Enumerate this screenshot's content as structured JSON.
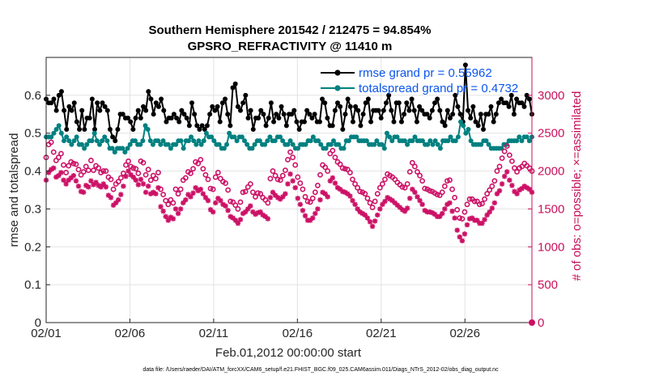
{
  "chart_data": {
    "type": "line",
    "title": "Southern Hemisphere 201542 / 212475 = 94.854%",
    "subtitle": "GPSRO_REFRACTIVITY @ 11410 m",
    "xlabel": "Feb.01,2012 00:00:00 start",
    "ylabel_left": "rmse and totalspread",
    "ylabel_right": "# of obs: o=possible; ×=assimilated",
    "footnote": "data file: /Users/raeder/DAI/ATM_forcXX/CAM6_setup/f.e21.FHIST_BGC.f09_025.CAM6assim.011/Diags_NTrS_2012-02/obs_diag_output.nc",
    "x_ticks": [
      "02/01",
      "02/06",
      "02/11",
      "02/16",
      "02/21",
      "02/26"
    ],
    "xlim_days": [
      1,
      30
    ],
    "y_left_ticks": [
      "0",
      "0.1",
      "0.2",
      "0.3",
      "0.4",
      "0.5",
      "0.6"
    ],
    "ylim_left": [
      0,
      0.7
    ],
    "y_right_ticks": [
      "0",
      "500",
      "1000",
      "1500",
      "2000",
      "2500",
      "3000"
    ],
    "ylim_right": [
      0,
      3500
    ],
    "grid": true,
    "legend_position": "top-right",
    "colors": {
      "rmse": "#000000",
      "spread": "#008080",
      "obs": "#cc1166"
    },
    "series": [
      {
        "name": "rmse grand pr = 0.55962",
        "axis": "left",
        "marker": "filled-dot",
        "color": "#000000",
        "values": [
          0.59,
          0.58,
          0.58,
          0.59,
          0.56,
          0.6,
          0.61,
          0.56,
          0.51,
          0.57,
          0.56,
          0.58,
          0.53,
          0.51,
          0.56,
          0.51,
          0.54,
          0.54,
          0.59,
          0.51,
          0.58,
          0.56,
          0.58,
          0.57,
          0.56,
          0.51,
          0.49,
          0.48,
          0.51,
          0.55,
          0.55,
          0.54,
          0.54,
          0.53,
          0.51,
          0.54,
          0.56,
          0.54,
          0.57,
          0.56,
          0.61,
          0.59,
          0.55,
          0.58,
          0.57,
          0.59,
          0.56,
          0.53,
          0.54,
          0.54,
          0.55,
          0.54,
          0.53,
          0.56,
          0.55,
          0.54,
          0.52,
          0.58,
          0.55,
          0.52,
          0.51,
          0.52,
          0.51,
          0.52,
          0.55,
          0.57,
          0.56,
          0.57,
          0.53,
          0.58,
          0.59,
          0.55,
          0.52,
          0.62,
          0.63,
          0.57,
          0.56,
          0.58,
          0.6,
          0.54,
          0.56,
          0.51,
          0.54,
          0.54,
          0.56,
          0.55,
          0.52,
          0.54,
          0.58,
          0.53,
          0.55,
          0.54,
          0.57,
          0.55,
          0.52,
          0.55,
          0.55,
          0.56,
          0.53,
          0.51,
          0.53,
          0.53,
          0.56,
          0.55,
          0.54,
          0.55,
          0.53,
          0.53,
          0.59,
          0.58,
          0.54,
          0.52,
          0.52,
          0.56,
          0.58,
          0.57,
          0.51,
          0.55,
          0.59,
          0.57,
          0.53,
          0.57,
          0.56,
          0.52,
          0.55,
          0.58,
          0.59,
          0.53,
          0.56,
          0.56,
          0.56,
          0.54,
          0.56,
          0.58,
          0.6,
          0.56,
          0.53,
          0.58,
          0.58,
          0.53,
          0.55,
          0.58,
          0.56,
          0.59,
          0.56,
          0.53,
          0.57,
          0.56,
          0.55,
          0.55,
          0.54,
          0.56,
          0.58,
          0.59,
          0.56,
          0.53,
          0.52,
          0.56,
          0.54,
          0.55,
          0.6,
          0.57,
          0.55,
          0.53,
          0.68,
          0.56,
          0.54,
          0.57,
          0.53,
          0.52,
          0.55,
          0.51,
          0.55,
          0.55,
          0.57,
          0.53,
          0.55,
          0.58,
          0.59,
          0.58,
          0.58,
          0.57,
          0.6,
          0.55,
          0.59,
          0.58,
          0.58,
          0.57,
          0.6,
          0.59,
          0.55
        ]
      },
      {
        "name": "totalspread grand pr = 0.4732",
        "axis": "left",
        "marker": "filled-dot",
        "color": "#008080",
        "values": [
          0.49,
          0.49,
          0.49,
          0.5,
          0.51,
          0.52,
          0.5,
          0.48,
          0.49,
          0.48,
          0.47,
          0.48,
          0.49,
          0.47,
          0.47,
          0.46,
          0.47,
          0.48,
          0.48,
          0.5,
          0.48,
          0.47,
          0.48,
          0.49,
          0.48,
          0.46,
          0.46,
          0.45,
          0.46,
          0.46,
          0.46,
          0.45,
          0.46,
          0.47,
          0.48,
          0.48,
          0.47,
          0.47,
          0.48,
          0.52,
          0.51,
          0.48,
          0.47,
          0.48,
          0.48,
          0.47,
          0.48,
          0.47,
          0.47,
          0.46,
          0.47,
          0.47,
          0.48,
          0.48,
          0.46,
          0.48,
          0.48,
          0.49,
          0.48,
          0.47,
          0.48,
          0.47,
          0.48,
          0.5,
          0.49,
          0.49,
          0.48,
          0.47,
          0.47,
          0.46,
          0.46,
          0.47,
          0.5,
          0.49,
          0.49,
          0.48,
          0.49,
          0.49,
          0.48,
          0.47,
          0.46,
          0.46,
          0.47,
          0.48,
          0.48,
          0.47,
          0.47,
          0.48,
          0.49,
          0.48,
          0.48,
          0.49,
          0.49,
          0.48,
          0.47,
          0.47,
          0.48,
          0.47,
          0.46,
          0.46,
          0.47,
          0.47,
          0.47,
          0.48,
          0.48,
          0.49,
          0.48,
          0.48,
          0.47,
          0.46,
          0.46,
          0.47,
          0.47,
          0.48,
          0.47,
          0.47,
          0.46,
          0.46,
          0.48,
          0.48,
          0.49,
          0.49,
          0.49,
          0.48,
          0.48,
          0.48,
          0.48,
          0.47,
          0.47,
          0.47,
          0.48,
          0.47,
          0.47,
          0.46,
          0.5,
          0.49,
          0.48,
          0.49,
          0.49,
          0.48,
          0.48,
          0.48,
          0.47,
          0.48,
          0.48,
          0.49,
          0.48,
          0.48,
          0.48,
          0.47,
          0.47,
          0.48,
          0.47,
          0.48,
          0.47,
          0.46,
          0.48,
          0.48,
          0.48,
          0.49,
          0.48,
          0.48,
          0.49,
          0.53,
          0.52,
          0.5,
          0.51,
          0.48,
          0.47,
          0.47,
          0.47,
          0.47,
          0.48,
          0.48,
          0.47,
          0.46,
          0.46,
          0.46,
          0.46,
          0.46,
          0.47,
          0.47,
          0.48,
          0.48,
          0.48,
          0.48,
          0.49,
          0.48,
          0.49,
          0.49,
          0.48,
          0.49
        ]
      },
      {
        "name": "possible obs",
        "axis": "right",
        "marker": "open-circle",
        "color": "#cc1166",
        "values": [
          2180,
          2350,
          2380,
          2250,
          2140,
          2180,
          2230,
          2080,
          1980,
          2070,
          2120,
          2100,
          2090,
          2020,
          1950,
          1990,
          2060,
          2010,
          2140,
          2010,
          2070,
          2040,
          1980,
          2000,
          2000,
          1920,
          1890,
          1760,
          1830,
          1860,
          1910,
          1970,
          2080,
          2130,
          2060,
          2040,
          2030,
          1970,
          2130,
          2110,
          1950,
          2020,
          1880,
          1940,
          1900,
          1980,
          1760,
          1690,
          1610,
          1560,
          1620,
          1580,
          1760,
          1700,
          1760,
          1880,
          1910,
          1990,
          1970,
          2030,
          2120,
          2100,
          2150,
          2030,
          1950,
          1890,
          1770,
          1760,
          1920,
          1980,
          1900,
          1860,
          1840,
          1750,
          1600,
          1590,
          1550,
          1500,
          1590,
          1720,
          1730,
          1790,
          1830,
          1720,
          1660,
          1710,
          1700,
          1650,
          1620,
          1580,
          1900,
          2000,
          1940,
          1890,
          1880,
          1940,
          2010,
          2150,
          2250,
          2180,
          2080,
          1920,
          1840,
          1760,
          1660,
          1600,
          1590,
          1640,
          1720,
          1810,
          1950,
          2080,
          2050,
          2000,
          2230,
          2270,
          2180,
          2120,
          2090,
          2040,
          2030,
          2020,
          1980,
          1890,
          1830,
          1780,
          1730,
          1720,
          1700,
          1640,
          1580,
          1520,
          1600,
          1700,
          1780,
          1830,
          1890,
          1960,
          1940,
          1920,
          1890,
          1850,
          1820,
          1790,
          1780,
          1830,
          1990,
          2110,
          2060,
          1990,
          1940,
          1870,
          1770,
          1760,
          1740,
          1730,
          1710,
          1690,
          1680,
          1720,
          1800,
          1870,
          1880,
          1760,
          1650,
          1490,
          1380,
          1370,
          1460,
          1560,
          1630,
          1630,
          1600,
          1600,
          1560,
          1570,
          1630,
          1700,
          1750,
          1800,
          1870,
          2000,
          2060,
          2170,
          2260,
          2330,
          2210,
          2130,
          2040,
          1990,
          2040,
          2060,
          2100,
          2070,
          2040,
          2000
        ]
      },
      {
        "name": "assimilated obs",
        "axis": "right",
        "marker": "asterisk",
        "color": "#cc1166",
        "values": [
          1880,
          1980,
          2020,
          2040,
          1920,
          1940,
          1980,
          1880,
          1830,
          1880,
          1910,
          1940,
          1870,
          1800,
          1730,
          1720,
          1810,
          1790,
          1870,
          1820,
          1850,
          1810,
          1790,
          1830,
          1790,
          1680,
          1650,
          1550,
          1580,
          1620,
          1690,
          1800,
          1930,
          2000,
          1950,
          1920,
          1880,
          1820,
          1890,
          1830,
          1720,
          1800,
          1700,
          1720,
          1700,
          1780,
          1530,
          1470,
          1400,
          1350,
          1390,
          1370,
          1500,
          1440,
          1500,
          1580,
          1620,
          1690,
          1660,
          1710,
          1780,
          1740,
          1760,
          1700,
          1650,
          1610,
          1490,
          1460,
          1580,
          1640,
          1610,
          1560,
          1540,
          1480,
          1400,
          1380,
          1350,
          1310,
          1360,
          1440,
          1460,
          1500,
          1540,
          1460,
          1430,
          1450,
          1460,
          1420,
          1400,
          1370,
          1650,
          1720,
          1680,
          1650,
          1630,
          1660,
          1700,
          1830,
          1960,
          1870,
          1780,
          1640,
          1560,
          1480,
          1410,
          1350,
          1350,
          1380,
          1440,
          1500,
          1620,
          1720,
          1700,
          1660,
          1870,
          1910,
          1840,
          1780,
          1760,
          1730,
          1720,
          1700,
          1670,
          1610,
          1560,
          1500,
          1460,
          1440,
          1420,
          1380,
          1330,
          1270,
          1340,
          1420,
          1500,
          1560,
          1600,
          1650,
          1630,
          1610,
          1580,
          1550,
          1520,
          1490,
          1470,
          1510,
          1640,
          1760,
          1720,
          1660,
          1610,
          1560,
          1480,
          1460,
          1460,
          1450,
          1430,
          1400,
          1400,
          1440,
          1500,
          1560,
          1580,
          1470,
          1380,
          1220,
          1130,
          1080,
          1170,
          1290,
          1370,
          1380,
          1350,
          1350,
          1310,
          1310,
          1360,
          1420,
          1460,
          1510,
          1580,
          1700,
          1740,
          1830,
          1930,
          1990,
          1880,
          1810,
          1730,
          1700,
          1750,
          1770,
          1800,
          1780,
          1760,
          1720
        ]
      }
    ]
  }
}
